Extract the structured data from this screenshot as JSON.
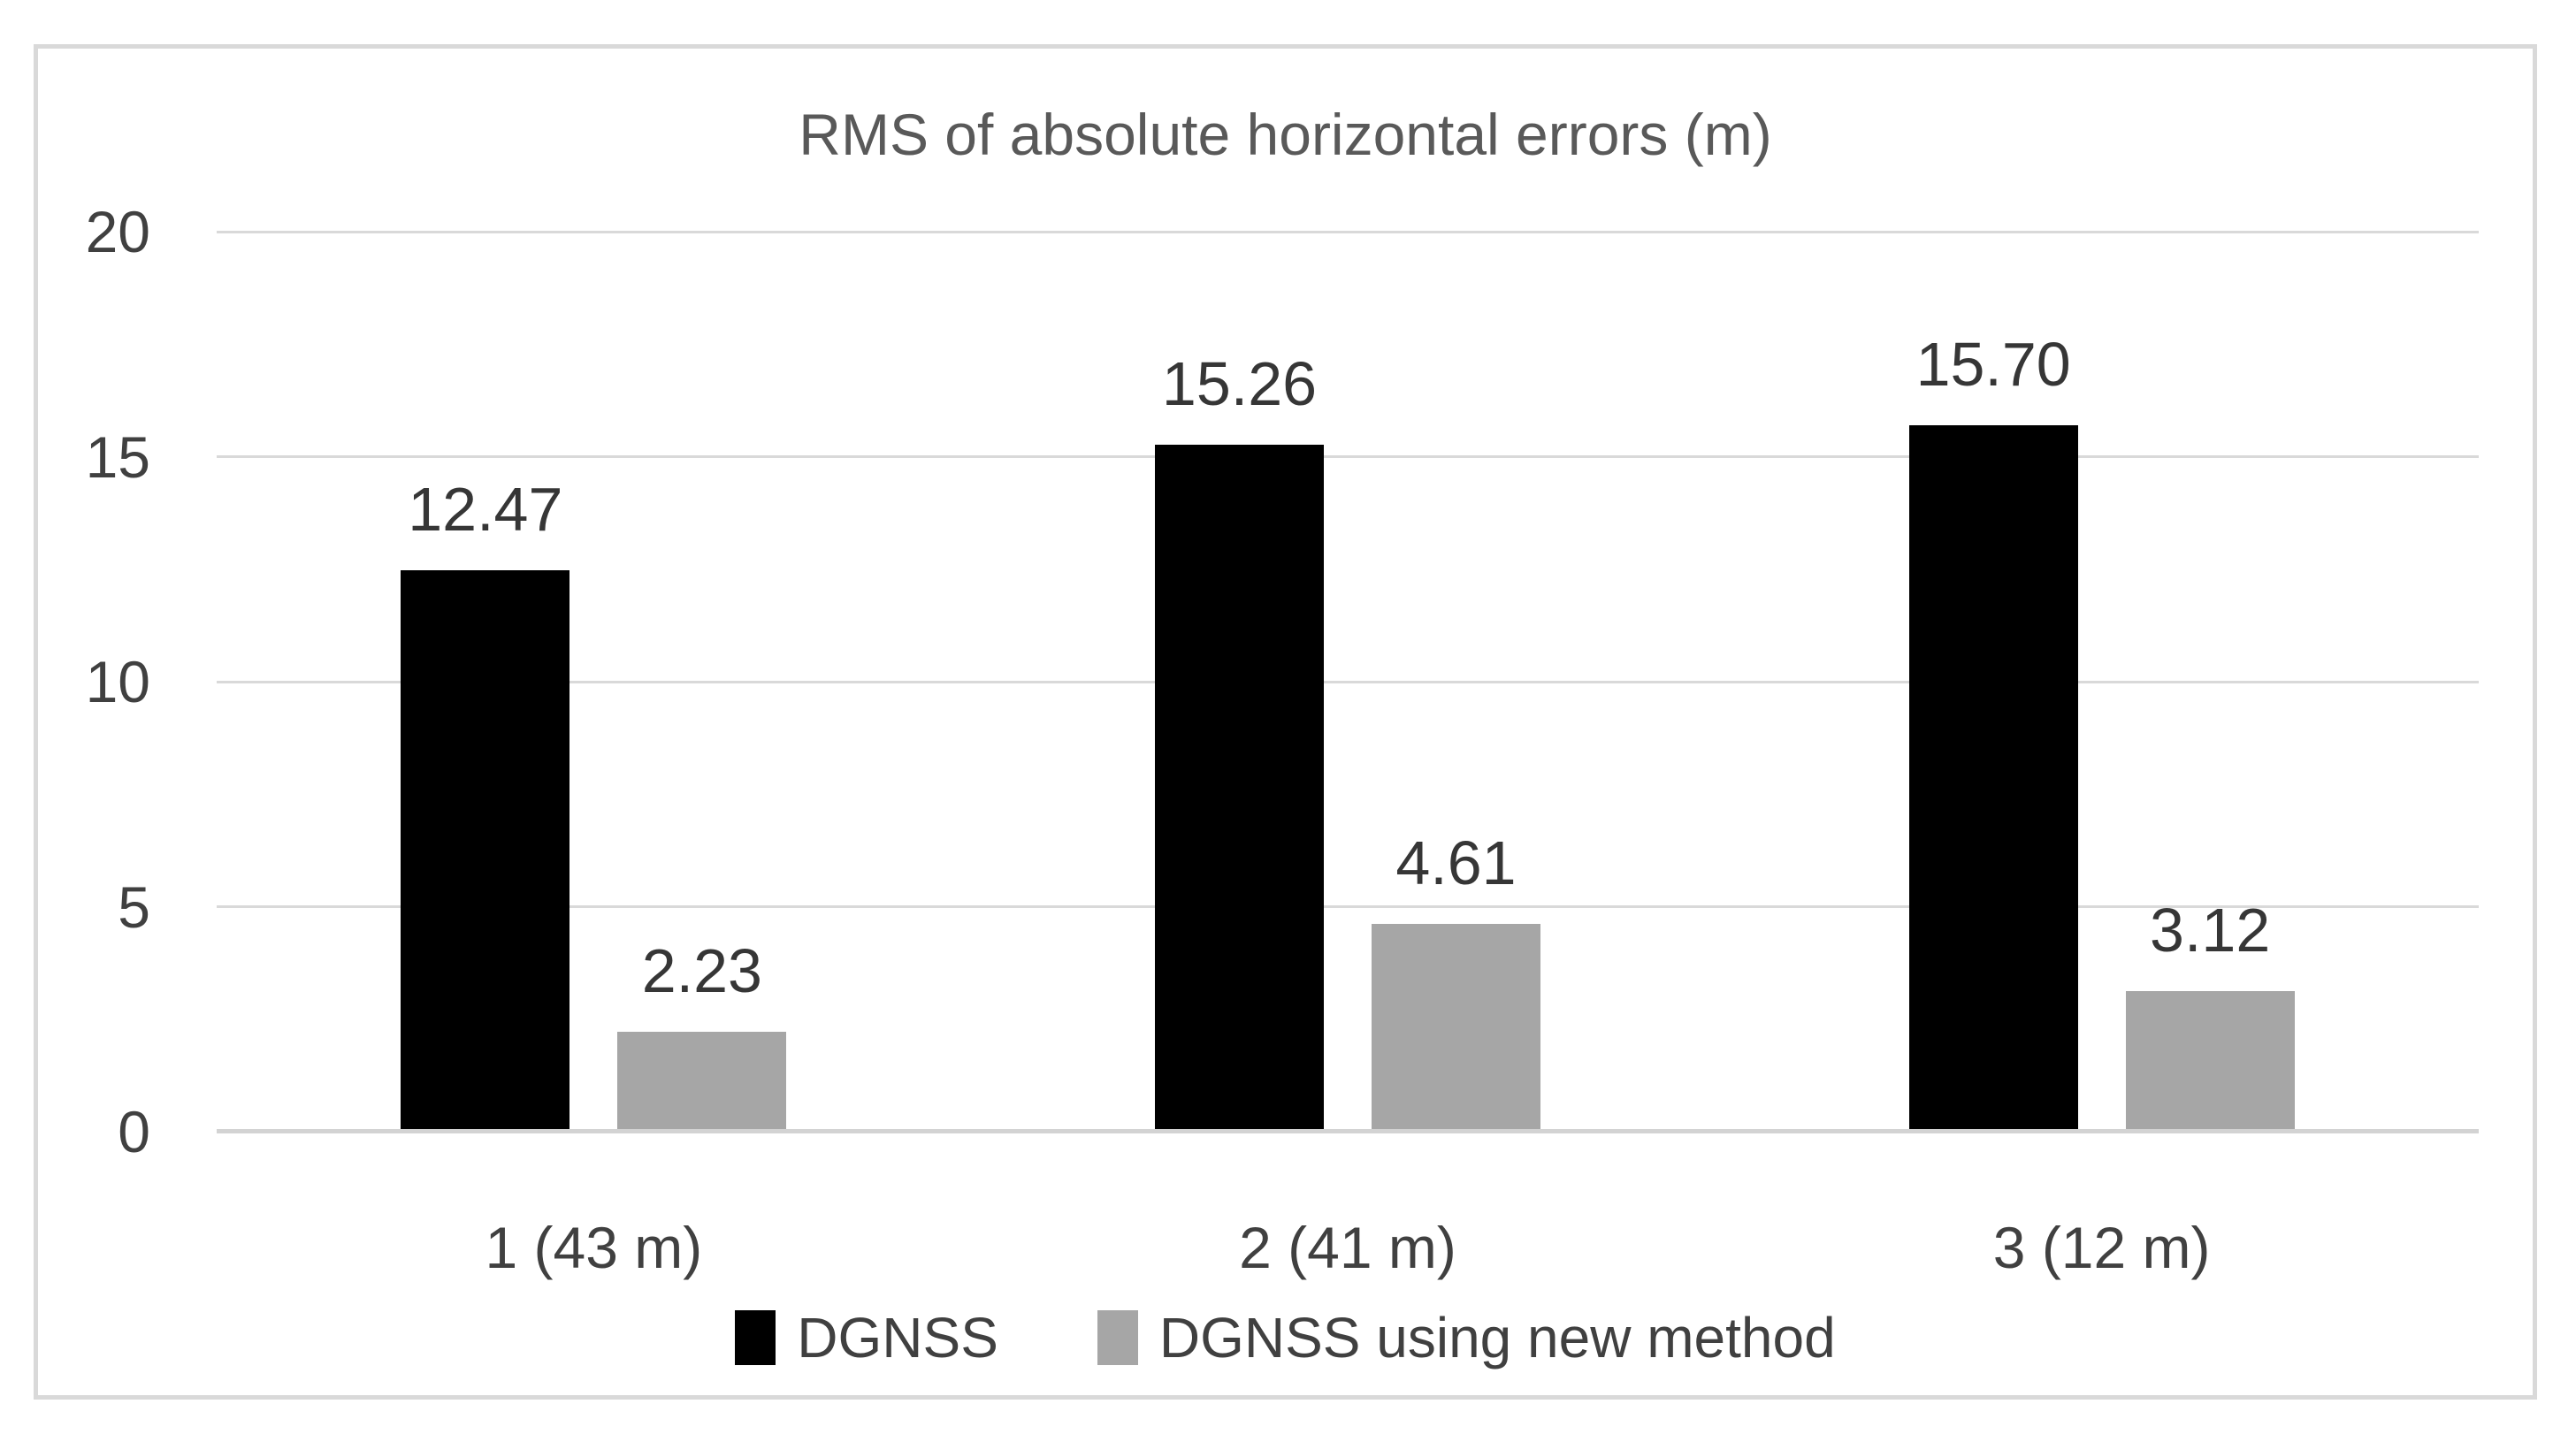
{
  "chart_data": {
    "type": "bar",
    "title": "RMS of absolute horizontal errors (m)",
    "categories": [
      "1 (43 m)",
      "2 (41 m)",
      "3 (12 m)"
    ],
    "series": [
      {
        "name": "DGNSS",
        "color": "#000000",
        "values": [
          12.47,
          15.26,
          15.7
        ],
        "labels": [
          "12.47",
          "15.26",
          "15.70"
        ]
      },
      {
        "name": "DGNSS using new method",
        "color": "#a6a6a6",
        "values": [
          2.23,
          4.61,
          3.12
        ],
        "labels": [
          "2.23",
          "4.61",
          "3.12"
        ]
      }
    ],
    "y_axis": {
      "min": 0,
      "max": 20,
      "tick_step": 5,
      "tick_labels": [
        "0",
        "5",
        "10",
        "15",
        "20"
      ]
    },
    "grid": true,
    "legend_position": "bottom",
    "styles": {
      "gridline_color": "#d9d9d9",
      "axis_line_color": "#d3d3d3",
      "frame_border_color": "#d9d9d9",
      "title_color": "#595959",
      "axis_label_color": "#404040",
      "data_label_color": "#363636",
      "background_color": "#ffffff"
    }
  }
}
